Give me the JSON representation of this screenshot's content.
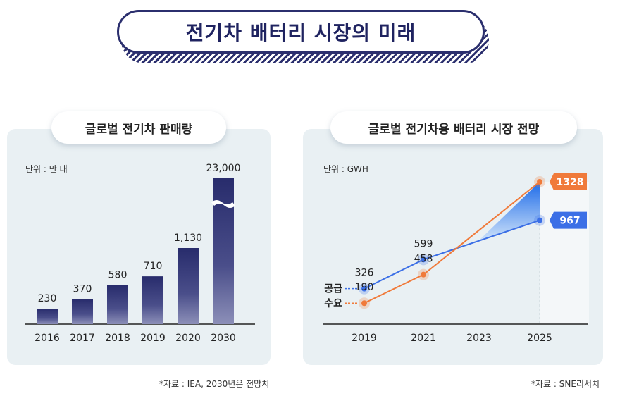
{
  "title": "전기차 배터리 시장의 미래",
  "colors": {
    "navy": "#2b2f6e",
    "blue": "#3b6fe6",
    "orange": "#f07a3a",
    "panel": "#e9f0f3"
  },
  "left": {
    "subtitle": "글로벌 전기차 판매량",
    "unit": "단위 : 만 대",
    "note": "*자료 : IEA, 2030년은 전망치",
    "chart_data": {
      "type": "bar",
      "title": "글로벌 전기차 판매량",
      "unit": "만 대",
      "categories": [
        "2016",
        "2017",
        "2018",
        "2019",
        "2020",
        "2030"
      ],
      "values": [
        230,
        370,
        580,
        710,
        1130,
        23000
      ],
      "labels": [
        "230",
        "370",
        "580",
        "710",
        "1,130",
        "23,000"
      ],
      "axis_break_after": "2020",
      "ylim": [
        0,
        23000
      ]
    }
  },
  "right": {
    "subtitle": "글로벌 전기차용 배터리 시장 전망",
    "unit": "단위 : GWH",
    "note": "*자료 : SNE리서치",
    "chart_data": {
      "type": "line",
      "title": "글로벌 전기차용 배터리 시장 전망",
      "unit": "GWH",
      "x": [
        "2019",
        "2021",
        "2023",
        "2025"
      ],
      "ylim": [
        0,
        1450
      ],
      "series": [
        {
          "name": "공급",
          "values": [
            326,
            599,
            null,
            967
          ],
          "labels": [
            "326",
            "599",
            "",
            "967"
          ]
        },
        {
          "name": "수요",
          "values": [
            190,
            458,
            null,
            1328
          ],
          "labels": [
            "190",
            "458",
            "",
            "1328"
          ]
        }
      ]
    }
  }
}
